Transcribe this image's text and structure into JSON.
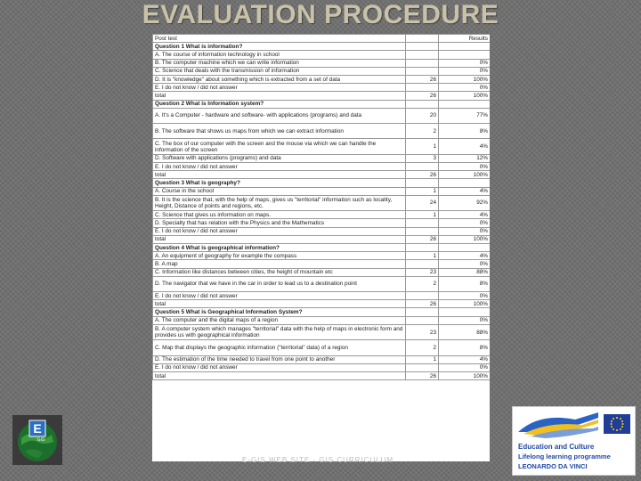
{
  "slide": {
    "title": "EVALUATION PROCEDURE",
    "footer": "E-GIS WEB SITE - GIS CURRICULUM"
  },
  "table": {
    "header": {
      "label": "Post test",
      "results": "Results"
    },
    "rows": [
      {
        "kind": "q",
        "text": "Question 1 What is information?",
        "n": "",
        "p": ""
      },
      {
        "text": "A. The course of information technology in school",
        "n": "",
        "p": ""
      },
      {
        "text": "B. The computer machine which we can write information",
        "n": "",
        "p": "0%"
      },
      {
        "text": "C. Science that deals with the transmission of information",
        "n": "",
        "p": "0%"
      },
      {
        "text": "D. It is \"knowledge\" about something which is extracted from a set of data",
        "n": "26",
        "p": "100%"
      },
      {
        "text": "E. I do not know / did not answer",
        "n": "",
        "p": "0%"
      },
      {
        "kind": "tot",
        "text": "total",
        "n": "26",
        "p": "100%"
      },
      {
        "kind": "q",
        "text": "Question 2 What is Information system?",
        "n": "",
        "p": ""
      },
      {
        "text": "A. It's a Computer - hardware and software- with applications (programs) and data",
        "n": "20",
        "p": "77%",
        "h": 2
      },
      {
        "text": "B. The software that shows us maps from which we can extract information",
        "n": "2",
        "p": "8%",
        "h": 2
      },
      {
        "text": "C. The box of our computer with the screen and the mouse via which we can handle the information of the screen",
        "n": "1",
        "p": "4%",
        "h": 2
      },
      {
        "text": "D. Software with applications (programs) and data",
        "n": "3",
        "p": "12%"
      },
      {
        "text": "E. I do not know / did not answer",
        "n": "",
        "p": "0%"
      },
      {
        "kind": "tot",
        "text": "total",
        "n": "26",
        "p": "100%"
      },
      {
        "kind": "q",
        "text": "Question 3 What is geography?",
        "n": "",
        "p": ""
      },
      {
        "text": "A. Course in the school",
        "n": "1",
        "p": "4%"
      },
      {
        "text": "B. It is the science that, with the help of maps, gives us \"territorial\" information such as locality, Height, Distance of points and regions, etc.",
        "n": "24",
        "p": "92%",
        "h": 2
      },
      {
        "text": "C. Science that gives us information on maps.",
        "n": "1",
        "p": "4%"
      },
      {
        "text": "D. Specialty that has relation with the Physics and the Mathematics",
        "n": "",
        "p": "0%"
      },
      {
        "text": "E. I do not know / did not answer",
        "n": "",
        "p": "0%"
      },
      {
        "kind": "tot",
        "text": "total",
        "n": "26",
        "p": "100%"
      },
      {
        "kind": "q",
        "text": "Question 4 What is geographical information?",
        "n": "",
        "p": ""
      },
      {
        "text": "A. An equipment of geography for example the compass",
        "n": "1",
        "p": "4%"
      },
      {
        "text": "B. A map",
        "n": "",
        "p": "0%"
      },
      {
        "text": "C. Information like distances between cities, the height of mountain etc",
        "n": "23",
        "p": "88%"
      },
      {
        "text": "D. The navigator that we have in the car in order to lead us to a destination point",
        "n": "2",
        "p": "8%",
        "h": 2
      },
      {
        "text": "E. I do not know / did not answer",
        "n": "",
        "p": "0%"
      },
      {
        "kind": "tot",
        "text": "total",
        "n": "26",
        "p": "100%"
      },
      {
        "kind": "q",
        "text": "Question 5 What is Geographical Information System?",
        "n": "",
        "p": ""
      },
      {
        "text": "A. The computer and the digital maps of a region",
        "n": "",
        "p": "0%"
      },
      {
        "text": "B. A computer system which manages \"territorial\" data with the help of maps in electronic form and provides us with geographical information",
        "n": "23",
        "p": "88%",
        "h": 2
      },
      {
        "text": "C. Map that displays the geographic information (\"territorial\" data) of a region",
        "n": "2",
        "p": "8%",
        "h": 2
      },
      {
        "text": "D. The estimation of the time needed to travel from one point to another",
        "n": "1",
        "p": "4%"
      },
      {
        "text": "E. I do not know / did not answer",
        "n": "",
        "p": "0%"
      },
      {
        "kind": "tot",
        "text": "total",
        "n": "26",
        "p": "100%"
      }
    ]
  },
  "logos": {
    "left": {
      "letter": "E",
      "sub": "GIS"
    },
    "right": {
      "line1": "Education and Culture",
      "line2": "Lifelong learning programme",
      "line3": "LEONARDO DA VINCI"
    }
  }
}
